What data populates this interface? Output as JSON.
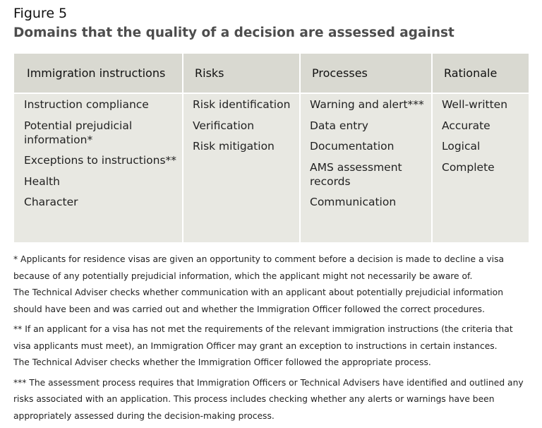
{
  "figure": {
    "label": "Figure 5",
    "title": "Domains that the quality of a decision are assessed against"
  },
  "table": {
    "columns": [
      {
        "header": "Immigration instructions",
        "items": [
          "Instruction compliance",
          "Potential prejudicial information*",
          "Exceptions to instructions**",
          "Health",
          "Character"
        ]
      },
      {
        "header": "Risks",
        "items": [
          "Risk identification",
          "Verification",
          "Risk mitigation"
        ]
      },
      {
        "header": "Processes",
        "items": [
          "Warning and alert***",
          "Data entry",
          "Documentation",
          "AMS assessment records",
          "Communication"
        ]
      },
      {
        "header": "Rationale",
        "items": [
          "Well-written",
          "Accurate",
          "Logical",
          "Complete"
        ]
      }
    ]
  },
  "notes": [
    {
      "lines": [
        "* Applicants for residence visas are given an opportunity to comment before a decision is made to decline a visa because of any potentially prejudicial information, which the applicant might not necessarily be aware of.",
        "The Technical Adviser checks whether communication with an applicant about potentially prejudicial information should have been and was carried out and whether the Immigration Officer followed the correct procedures."
      ]
    },
    {
      "lines": [
        "** If an applicant for a visa has not met the requirements of the relevant immigration instructions (the criteria that visa applicants must meet), an Immigration Officer may grant an exception to instructions in certain instances.",
        "The Technical Adviser checks whether the Immigration Officer followed the appropriate process."
      ]
    },
    {
      "lines": [
        "*** The assessment process requires that Immigration Officers or Technical Advisers have identified and outlined any risks associated with an application. This process includes checking whether any alerts or warnings have been appropriately assessed during the decision-making process."
      ]
    }
  ]
}
